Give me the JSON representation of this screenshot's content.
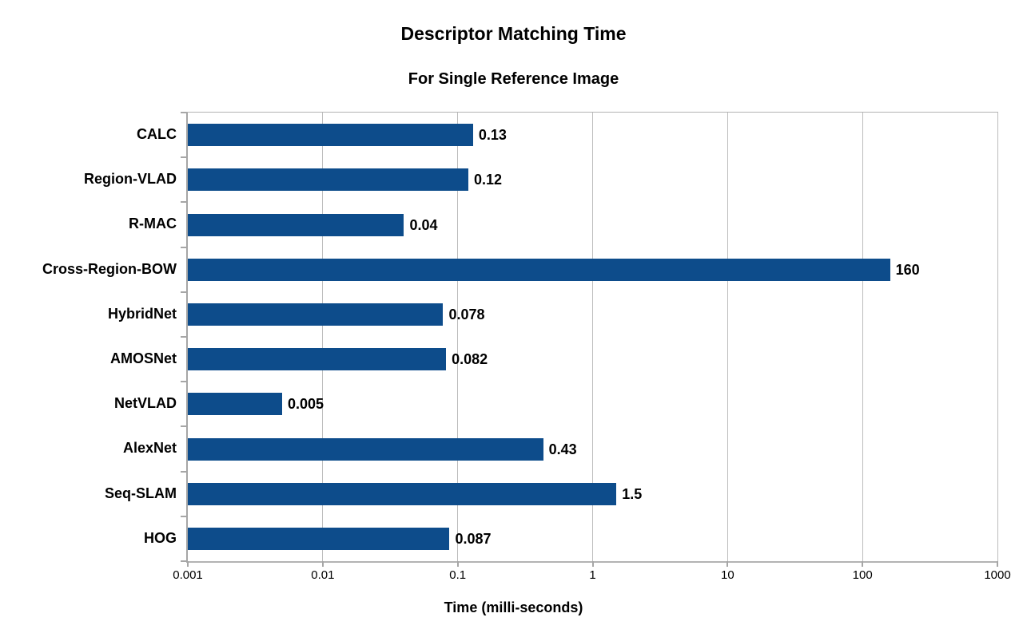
{
  "chart_data": {
    "type": "bar",
    "orientation": "horizontal",
    "title": "Descriptor Matching Time",
    "subtitle": "For Single Reference Image",
    "xlabel": "Time (milli-seconds)",
    "ylabel": "",
    "categories": [
      "CALC",
      "Region-VLAD",
      "R-MAC",
      "Cross-Region-BOW",
      "HybridNet",
      "AMOSNet",
      "NetVLAD",
      "AlexNet",
      "Seq-SLAM",
      "HOG"
    ],
    "values": [
      0.13,
      0.12,
      0.04,
      160,
      0.078,
      0.082,
      0.005,
      0.43,
      1.5,
      0.087
    ],
    "value_labels": [
      "0.13",
      "0.12",
      "0.04",
      "160",
      "0.078",
      "0.082",
      "0.005",
      "0.43",
      "1.5",
      "0.087"
    ],
    "x_scale": "log",
    "xlim": [
      0.001,
      1000
    ],
    "x_tick_labels": [
      "0.001",
      "0.01",
      "0.1",
      "1",
      "10",
      "100",
      "1000"
    ],
    "x_tick_values": [
      0.001,
      0.01,
      0.1,
      1,
      10,
      100,
      1000
    ],
    "grid": "vertical-gridlines-on",
    "legend_position": "none"
  },
  "colors": {
    "bar": "#0d4c8b",
    "gridline": "#bdbdbd",
    "axis": "#a6a6a6",
    "text": "#000000",
    "background": "#ffffff"
  }
}
